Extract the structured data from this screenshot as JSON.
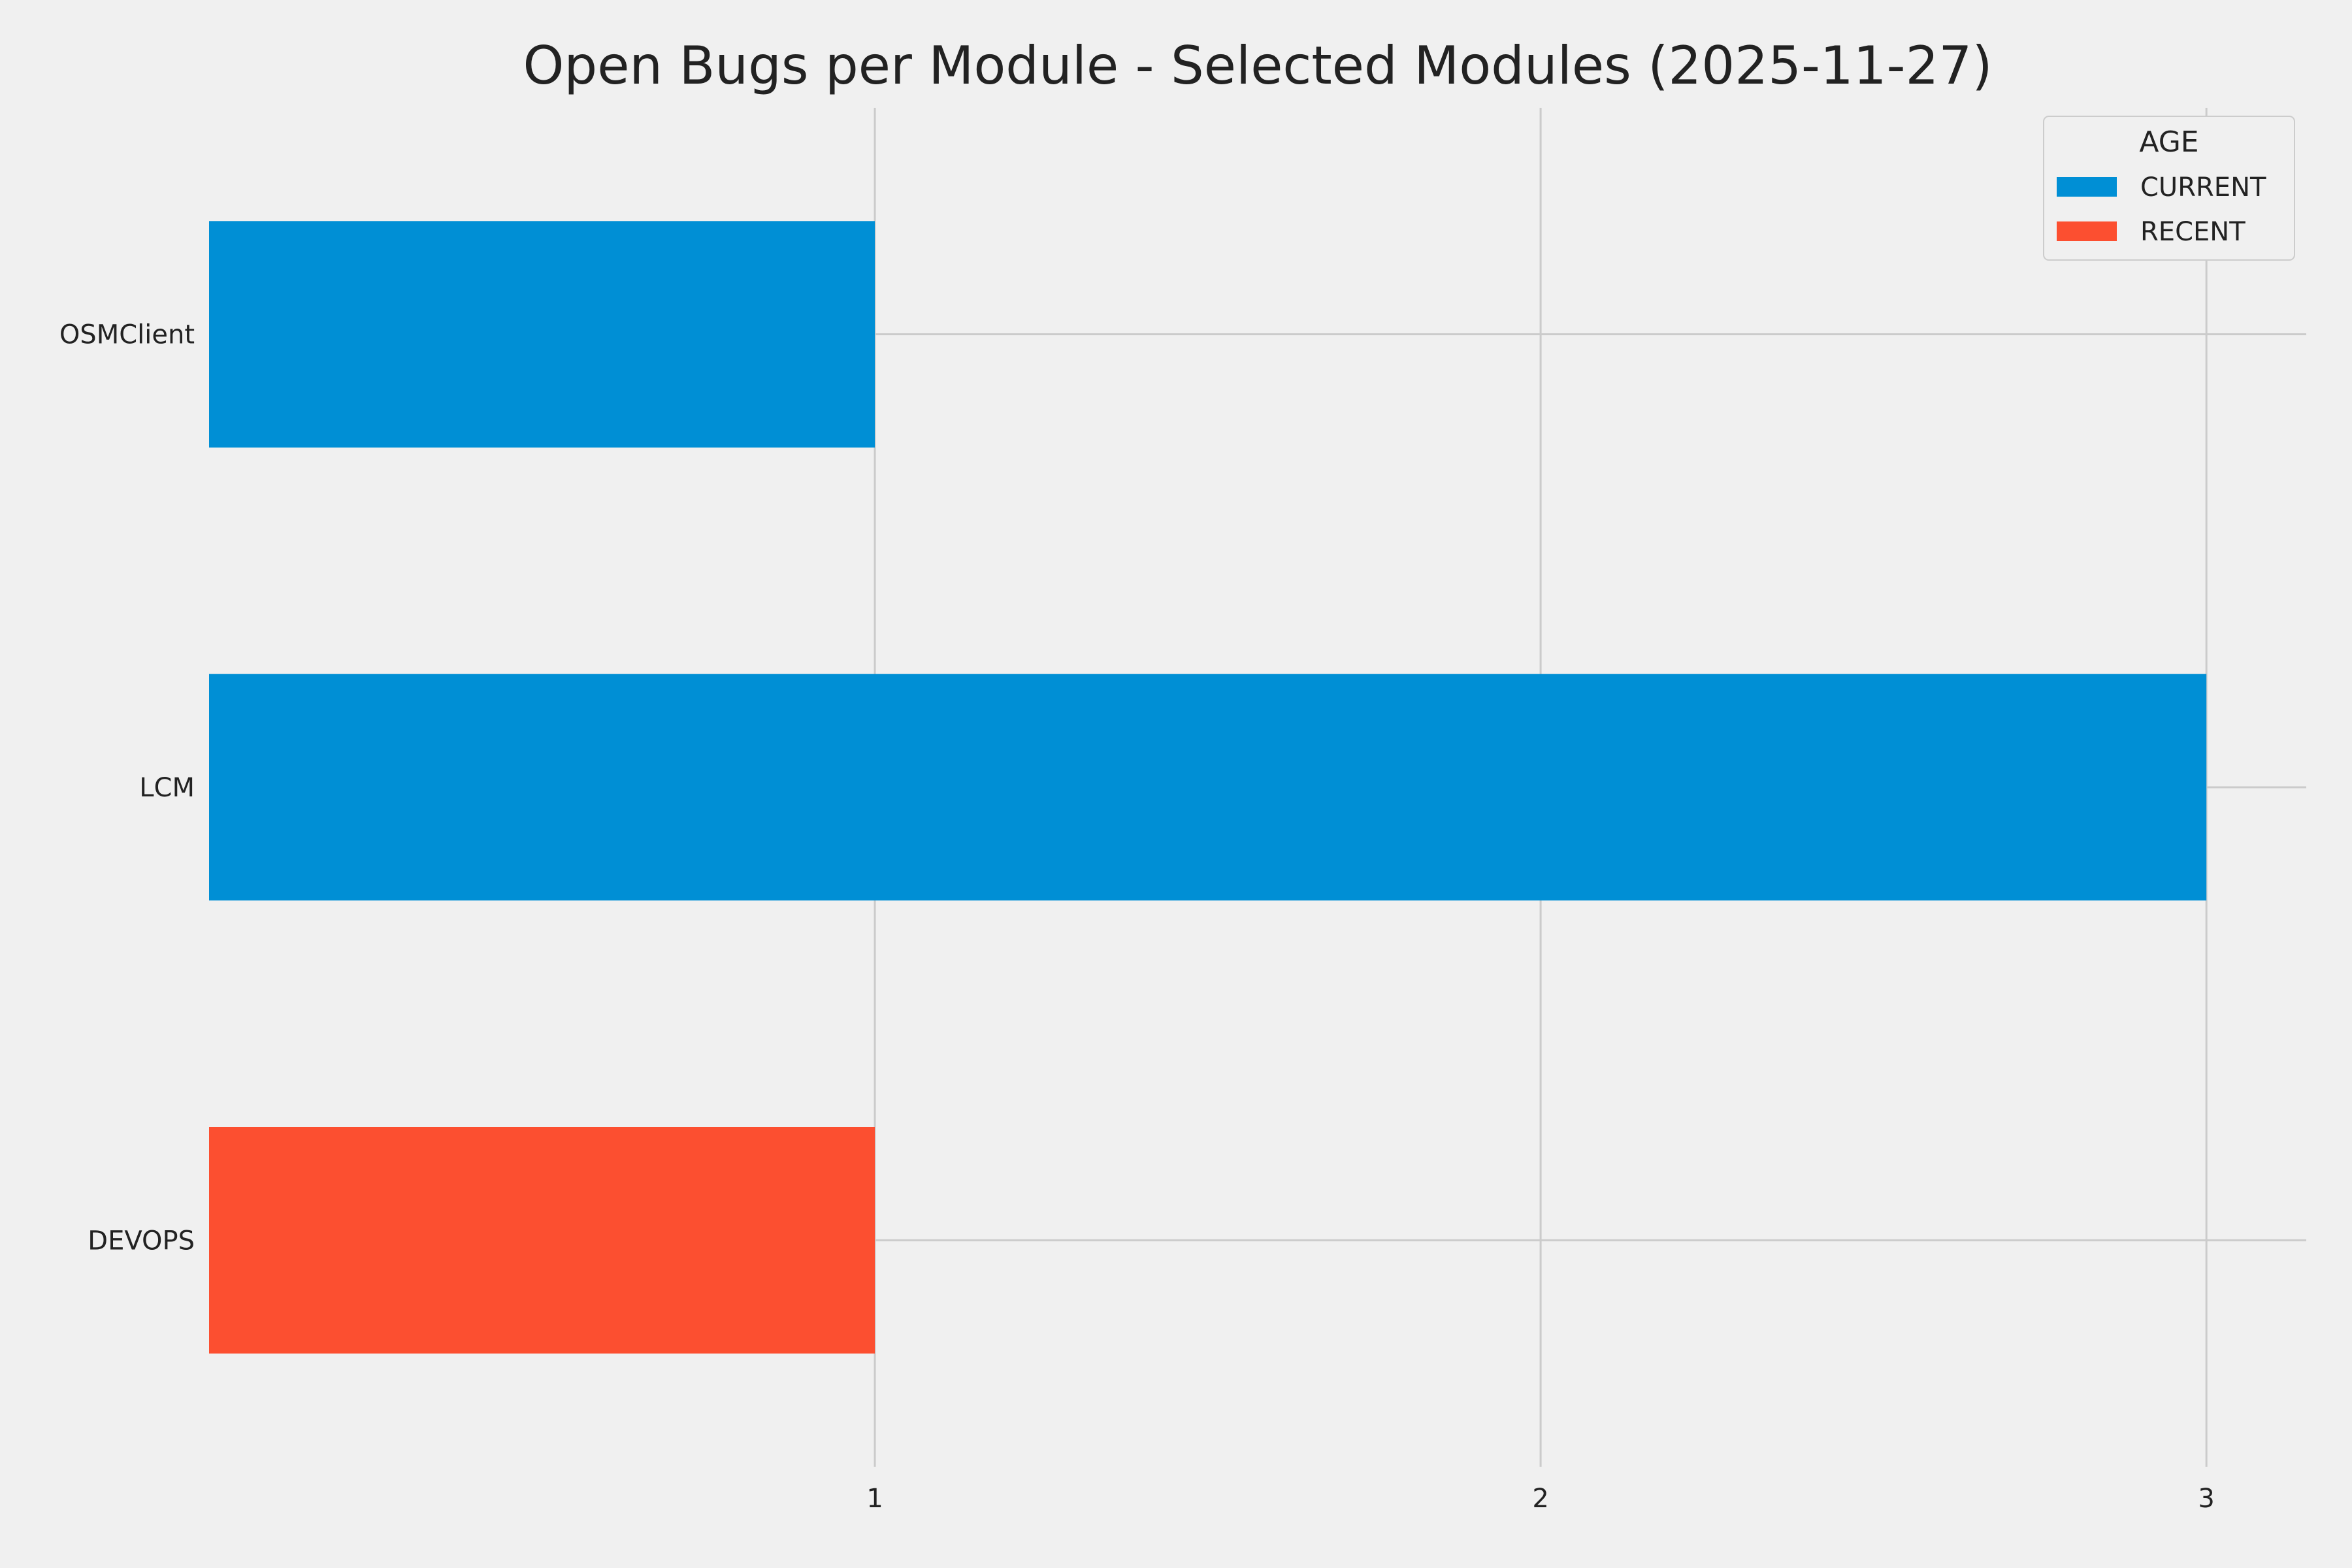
{
  "chart_data": {
    "type": "bar",
    "orientation": "horizontal",
    "title": "Open Bugs per Module - Selected Modules (2025-11-27)",
    "xlabel": "",
    "ylabel": "",
    "categories": [
      "OSMClient",
      "LCM",
      "DEVOPS"
    ],
    "bars": [
      {
        "category": "OSMClient",
        "value": 1,
        "series": "CURRENT"
      },
      {
        "category": "LCM",
        "value": 3,
        "series": "CURRENT"
      },
      {
        "category": "DEVOPS",
        "value": 1,
        "series": "RECENT"
      }
    ],
    "series": [
      {
        "name": "CURRENT",
        "color": "#008fd5"
      },
      {
        "name": "RECENT",
        "color": "#fc4f30"
      }
    ],
    "xticks": [
      "1",
      "2",
      "3"
    ],
    "xlim": [
      0,
      3.15
    ],
    "grid": true,
    "legend": {
      "title": "AGE",
      "placement": "top-right"
    },
    "background_color": "#f0f0f0",
    "grid_color": "#cbcbcb"
  }
}
